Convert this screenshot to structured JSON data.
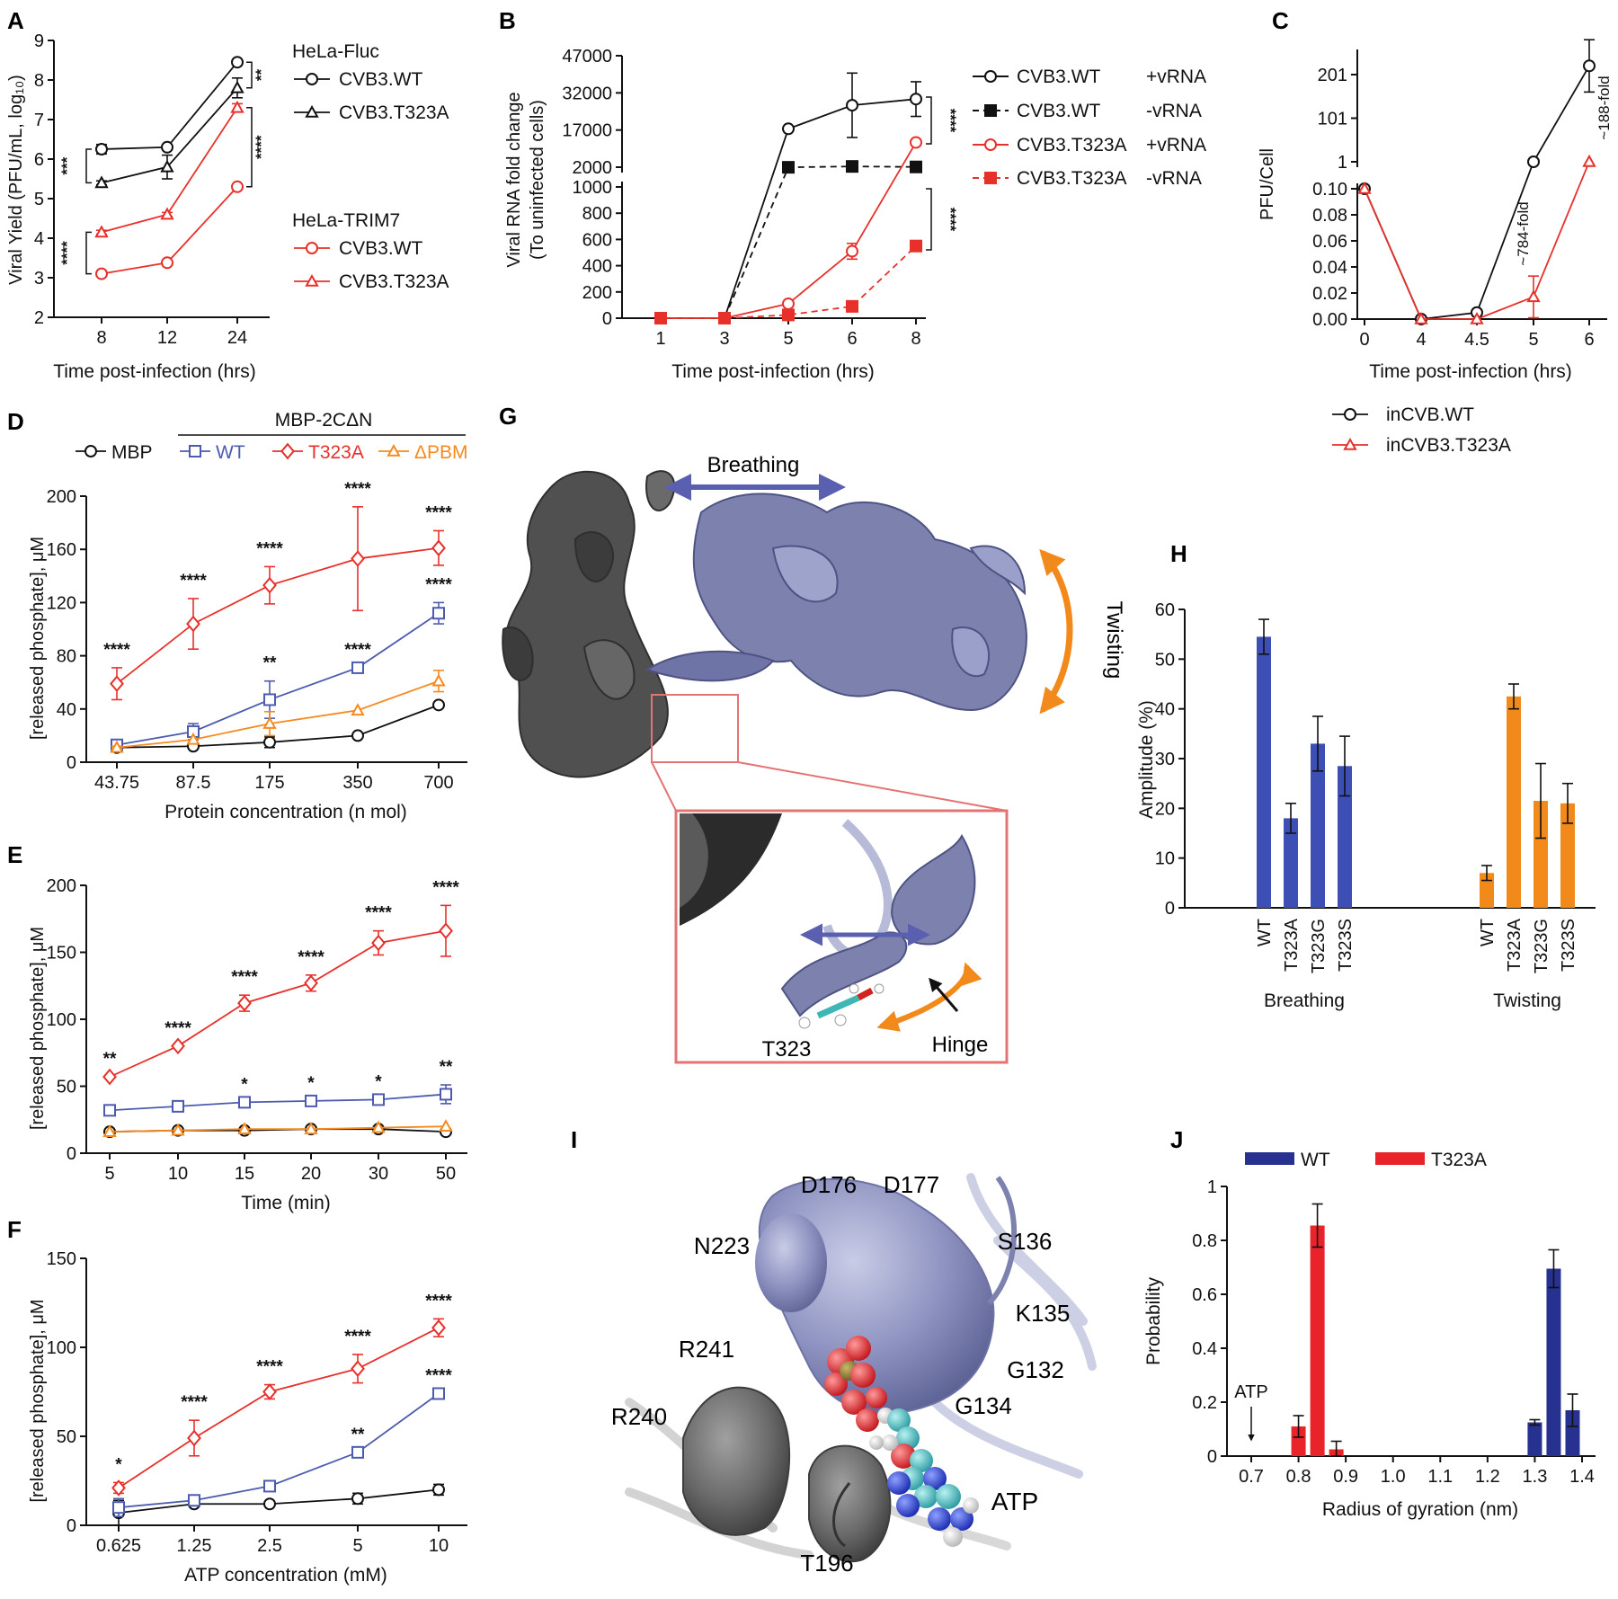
{
  "panels": {
    "A": "A",
    "B": "B",
    "C": "C",
    "D": "D",
    "E": "E",
    "F": "F",
    "G": "G",
    "H": "H",
    "I": "I",
    "J": "J"
  },
  "colors": {
    "black": "#111111",
    "red": "#e8302a",
    "blue": "#4c5bb0",
    "orange": "#f58a1f",
    "navy": "#27318f",
    "bar_red": "#e8232a",
    "bar_blue": "#3d4fb5",
    "bar_orange": "#f28a1b",
    "protein_dark": "#505050",
    "protein_light": "#7c82ad",
    "inset_border": "#e57373"
  },
  "chart_data": [
    {
      "panel": "A",
      "type": "line",
      "xlabel": "Time post-infection (hrs)",
      "ylabel": "Viral Yield (PFU/mL, log₁₀)",
      "x": [
        8,
        12,
        24
      ],
      "xticks": [
        "8",
        "12",
        "24"
      ],
      "ylim": [
        2,
        9
      ],
      "yticks": [
        "2",
        "3",
        "4",
        "5",
        "6",
        "7",
        "8",
        "9"
      ],
      "legend_groups": [
        "HeLa-Fluc",
        "HeLa-TRIM7"
      ],
      "series": [
        {
          "name": "CVB3.WT",
          "group": "HeLa-Fluc",
          "color": "black",
          "marker": "circle",
          "values": [
            6.25,
            6.3,
            8.45
          ],
          "err": [
            0.12,
            0.05,
            0.05
          ]
        },
        {
          "name": "CVB3.T323A",
          "group": "HeLa-Fluc",
          "color": "black",
          "marker": "triangle",
          "values": [
            5.4,
            5.8,
            7.8
          ],
          "err": [
            0.05,
            0.3,
            0.25
          ]
        },
        {
          "name": "CVB3.WT",
          "group": "HeLa-TRIM7",
          "color": "red",
          "marker": "circle",
          "values": [
            3.1,
            3.38,
            5.3
          ],
          "err": [
            0.05,
            0.05,
            0.05
          ]
        },
        {
          "name": "CVB3.T323A",
          "group": "HeLa-TRIM7",
          "color": "red",
          "marker": "triangle",
          "values": [
            4.15,
            4.6,
            7.3
          ],
          "err": [
            0.05,
            0.05,
            0.1
          ]
        }
      ],
      "annotations": [
        "***",
        "****",
        "**",
        "****"
      ]
    },
    {
      "panel": "B",
      "type": "line",
      "xlabel": "Time post-infection (hrs)",
      "ylabel": "Viral RNA fold change",
      "ylabel2": "(To uninfected cells)",
      "x": [
        1,
        3,
        5,
        6,
        8
      ],
      "xticks": [
        "1",
        "3",
        "5",
        "6",
        "8"
      ],
      "yticks_low": [
        "0",
        "200",
        "400",
        "600",
        "800",
        "1000"
      ],
      "yticks_high": [
        "2000",
        "17000",
        "32000",
        "47000"
      ],
      "series": [
        {
          "name": "CVB3.WT",
          "label2": "+vRNA",
          "color": "black",
          "marker": "circle-open",
          "dashed": false,
          "values": [
            0,
            0,
            17500,
            27000,
            29500
          ],
          "err": [
            0,
            0,
            0,
            13000,
            7000
          ]
        },
        {
          "name": "CVB3.WT",
          "label2": "-vRNA",
          "color": "black",
          "marker": "square-filled",
          "dashed": true,
          "values": [
            0,
            0,
            1950,
            2300,
            2100
          ],
          "err": [
            0,
            0,
            0,
            0,
            0
          ]
        },
        {
          "name": "CVB3.T323A",
          "label2": "+vRNA",
          "color": "red",
          "marker": "circle-open",
          "dashed": false,
          "values": [
            0,
            0,
            110,
            510,
            12000
          ],
          "err": [
            0,
            0,
            0,
            60,
            0
          ]
        },
        {
          "name": "CVB3.T323A",
          "label2": "-vRNA",
          "color": "red",
          "marker": "square-filled",
          "dashed": true,
          "values": [
            0,
            0,
            25,
            90,
            550
          ],
          "err": [
            0,
            0,
            0,
            0,
            40
          ]
        }
      ],
      "annotations": [
        "****",
        "****"
      ]
    },
    {
      "panel": "C",
      "type": "line",
      "xlabel": "Time post-infection (hrs)",
      "ylabel": "PFU/Cell",
      "x": [
        0,
        4,
        4.5,
        5,
        6
      ],
      "xticks": [
        "0",
        "4",
        "4.5",
        "5",
        "6"
      ],
      "yticks_low": [
        "0.00",
        "0.02",
        "0.04",
        "0.06",
        "0.08",
        "0.10"
      ],
      "yticks_high": [
        "1",
        "101",
        "201"
      ],
      "series": [
        {
          "name": "inCVB.WT",
          "color": "black",
          "marker": "circle",
          "values": [
            0.1,
            0.0,
            0.005,
            1,
            221
          ],
          "err": [
            0,
            0,
            0,
            0,
            60
          ]
        },
        {
          "name": "inCVB3.T323A",
          "color": "red",
          "marker": "triangle",
          "values": [
            0.1,
            0.0,
            0.0,
            0.017,
            1.17
          ],
          "err": [
            0,
            0,
            0,
            0.016,
            0
          ]
        }
      ],
      "annotations": [
        "~784-fold",
        "~188-fold"
      ]
    },
    {
      "panel": "D",
      "type": "line",
      "xlabel": "Protein concentration (n mol)",
      "ylabel": "[released phosphate], μM",
      "x": [
        43.75,
        87.5,
        175,
        350,
        700
      ],
      "xticks": [
        "43.75",
        "87.5",
        "175",
        "350",
        "700"
      ],
      "ylim": [
        0,
        200
      ],
      "yticks": [
        "0",
        "40",
        "80",
        "120",
        "160",
        "200"
      ],
      "legend_header": "MBP-2CΔN",
      "series": [
        {
          "name": "MBP",
          "color": "black",
          "marker": "circle",
          "values": [
            11,
            12,
            15,
            20,
            43
          ],
          "err": [
            1,
            1,
            4,
            0,
            0
          ]
        },
        {
          "name": "WT",
          "color": "blue",
          "marker": "square",
          "values": [
            13,
            23,
            47,
            71,
            112
          ],
          "err": [
            2,
            6,
            14,
            0,
            8
          ]
        },
        {
          "name": "T323A",
          "color": "red",
          "marker": "diamond",
          "values": [
            59,
            104,
            133,
            153,
            161
          ],
          "err": [
            12,
            19,
            14,
            39,
            13
          ]
        },
        {
          "name": "ΔPBM",
          "color": "orange",
          "marker": "triangle",
          "values": [
            11,
            17,
            29,
            39,
            61
          ],
          "err": [
            1,
            0,
            9,
            0,
            8
          ]
        }
      ],
      "annotations_top": [
        "****",
        "****",
        "****",
        "****",
        "****"
      ],
      "annotations_wt": [
        "**",
        "****",
        "****"
      ]
    },
    {
      "panel": "E",
      "type": "line",
      "xlabel": "Time (min)",
      "ylabel": "[released phosphate], μM",
      "x": [
        5,
        10,
        15,
        20,
        30,
        50
      ],
      "xticks": [
        "5",
        "10",
        "15",
        "20",
        "30",
        "50"
      ],
      "ylim": [
        0,
        200
      ],
      "yticks": [
        "0",
        "50",
        "100",
        "150",
        "200"
      ],
      "series": [
        {
          "name": "MBP",
          "color": "black",
          "marker": "circle",
          "values": [
            16,
            17,
            17,
            18,
            18,
            16
          ],
          "err": [
            0,
            0,
            0,
            0,
            0,
            0
          ]
        },
        {
          "name": "WT",
          "color": "blue",
          "marker": "square",
          "values": [
            32,
            35,
            38,
            39,
            40,
            44
          ],
          "err": [
            0,
            0,
            0,
            0,
            0,
            7
          ]
        },
        {
          "name": "T323A",
          "color": "red",
          "marker": "diamond",
          "values": [
            57,
            80,
            112,
            127,
            157,
            166
          ],
          "err": [
            0,
            0,
            6,
            6,
            9,
            19
          ]
        },
        {
          "name": "ΔPBM",
          "color": "orange",
          "marker": "triangle",
          "values": [
            16,
            17,
            18,
            18,
            19,
            20
          ],
          "err": [
            0,
            0,
            0,
            0,
            0,
            0
          ]
        }
      ],
      "annotations_top": [
        "**",
        "****",
        "****",
        "****",
        "****",
        "****"
      ],
      "annotations_wt": [
        "*",
        "*",
        "*",
        "**"
      ]
    },
    {
      "panel": "F",
      "type": "line",
      "xlabel": "ATP concentration (mM)",
      "ylabel": "[released phosphate], μM",
      "x": [
        0.625,
        1.25,
        2.5,
        5,
        10
      ],
      "xticks": [
        "0.625",
        "1.25",
        "2.5",
        "5",
        "10"
      ],
      "ylim": [
        0,
        150
      ],
      "yticks": [
        "0",
        "50",
        "100",
        "150"
      ],
      "series": [
        {
          "name": "MBP",
          "color": "black",
          "marker": "circle",
          "values": [
            7,
            12,
            12,
            15,
            20
          ],
          "err": [
            7,
            0,
            0,
            3,
            3
          ]
        },
        {
          "name": "WT",
          "color": "blue",
          "marker": "square",
          "values": [
            10,
            14,
            22,
            41,
            74
          ],
          "err": [
            5,
            0,
            0,
            0,
            0
          ]
        },
        {
          "name": "T323A",
          "color": "red",
          "marker": "diamond",
          "values": [
            21,
            49,
            75,
            88,
            111
          ],
          "err": [
            3,
            10,
            4,
            8,
            5
          ]
        }
      ],
      "annotations_top": [
        "*",
        "****",
        "****",
        "****",
        "****"
      ],
      "annotations_wt": [
        "**",
        "****"
      ]
    },
    {
      "panel": "H",
      "type": "bar",
      "ylabel": "Amplitude (%)",
      "ylim": [
        0,
        60
      ],
      "yticks": [
        "0",
        "10",
        "20",
        "30",
        "40",
        "50",
        "60"
      ],
      "groups": [
        {
          "name": "Breathing",
          "color": "bar_blue",
          "categories": [
            "WT",
            "T323A",
            "T323G",
            "T323S"
          ],
          "values": [
            54.5,
            18,
            33,
            28.5
          ],
          "err": [
            3.5,
            3,
            5.5,
            6
          ]
        },
        {
          "name": "Twisting",
          "color": "bar_orange",
          "categories": [
            "WT",
            "T323A",
            "T323G",
            "T323S"
          ],
          "values": [
            7,
            42.5,
            21.5,
            21
          ],
          "err": [
            1.5,
            2.5,
            7.5,
            4
          ]
        }
      ]
    },
    {
      "panel": "J",
      "type": "bar",
      "xlabel": "Radius of gyration (nm)",
      "ylabel": "Probability",
      "xticks": [
        "0.7",
        "0.8",
        "0.9",
        "1.0",
        "1.1",
        "1.2",
        "1.3",
        "1.4"
      ],
      "ylim": [
        0,
        1
      ],
      "yticks": [
        "0",
        "0.2",
        "0.4",
        "0.6",
        "0.8",
        "1"
      ],
      "series": [
        {
          "name": "WT",
          "color": "navy",
          "x": [
            1.3,
            1.34,
            1.38
          ],
          "values": [
            0.125,
            0.695,
            0.17
          ],
          "err": [
            0.01,
            0.07,
            0.06
          ]
        },
        {
          "name": "T323A",
          "color": "bar_red",
          "x": [
            0.8,
            0.84,
            0.88
          ],
          "values": [
            0.11,
            0.855,
            0.025
          ],
          "err": [
            0.04,
            0.08,
            0.03
          ]
        }
      ],
      "arrow_label": "ATP",
      "arrow_x": 0.7
    }
  ],
  "structure_G": {
    "labels": {
      "breathing": "Breathing",
      "twisting": "Twisting",
      "hinge": "Hinge",
      "residue": "T323"
    }
  },
  "structure_I": {
    "residues": [
      "D176",
      "D177",
      "N223",
      "S136",
      "K135",
      "R241",
      "G132",
      "G134",
      "R240",
      "ATP",
      "T196"
    ]
  }
}
